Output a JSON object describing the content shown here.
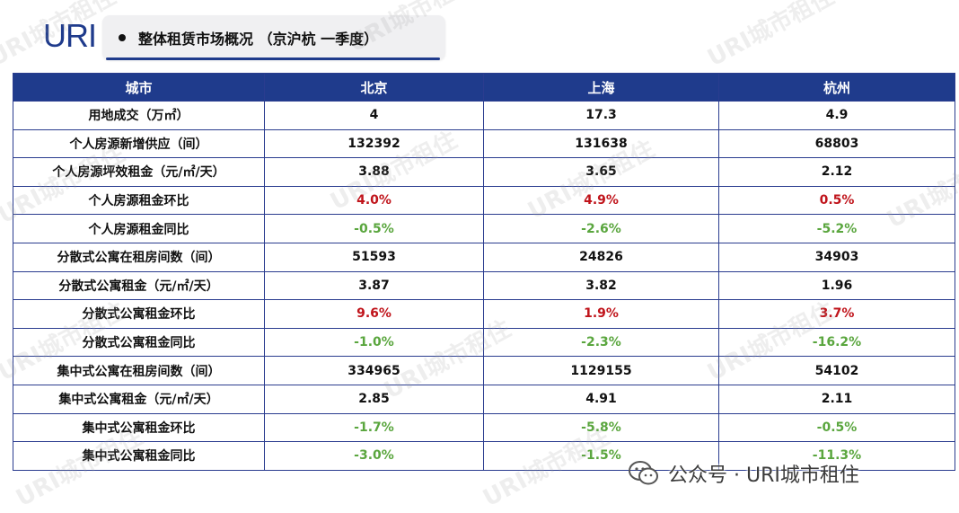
{
  "header": {
    "logo_text": "URI",
    "title": "整体租赁市场概况 （京沪杭 一季度）"
  },
  "table": {
    "columns": [
      "城市",
      "北京",
      "上海",
      "杭州"
    ],
    "rows": [
      {
        "metric": "用地成交（万㎡）",
        "values": [
          "4",
          "17.3",
          "4.9"
        ],
        "tone": [
          "",
          "",
          ""
        ]
      },
      {
        "metric": "个人房源新增供应（间）",
        "values": [
          "132392",
          "131638",
          "68803"
        ],
        "tone": [
          "",
          "",
          ""
        ]
      },
      {
        "metric": "个人房源坪效租金（元/㎡/天）",
        "values": [
          "3.88",
          "3.65",
          "2.12"
        ],
        "tone": [
          "",
          "",
          ""
        ]
      },
      {
        "metric": "个人房源租金环比",
        "values": [
          "4.0%",
          "4.9%",
          "0.5%"
        ],
        "tone": [
          "pos",
          "pos",
          "pos"
        ]
      },
      {
        "metric": "个人房源租金同比",
        "values": [
          "-0.5%",
          "-2.6%",
          "-5.2%"
        ],
        "tone": [
          "neg",
          "neg",
          "neg"
        ]
      },
      {
        "metric": "分散式公寓在租房间数（间）",
        "values": [
          "51593",
          "24826",
          "34903"
        ],
        "tone": [
          "",
          "",
          ""
        ]
      },
      {
        "metric": "分散式公寓租金（元/㎡/天）",
        "values": [
          "3.87",
          "3.82",
          "1.96"
        ],
        "tone": [
          "",
          "",
          ""
        ]
      },
      {
        "metric": "分散式公寓租金环比",
        "values": [
          "9.6%",
          "1.9%",
          "3.7%"
        ],
        "tone": [
          "pos",
          "pos",
          "pos"
        ]
      },
      {
        "metric": "分散式公寓租金同比",
        "values": [
          "-1.0%",
          "-2.3%",
          "-16.2%"
        ],
        "tone": [
          "neg",
          "neg",
          "neg"
        ]
      },
      {
        "metric": "集中式公寓在租房间数（间）",
        "values": [
          "334965",
          "1129155",
          "54102"
        ],
        "tone": [
          "",
          "",
          ""
        ]
      },
      {
        "metric": "集中式公寓租金（元/㎡/天）",
        "values": [
          "2.85",
          "4.91",
          "2.11"
        ],
        "tone": [
          "",
          "",
          ""
        ]
      },
      {
        "metric": "集中式公寓租金环比",
        "values": [
          "-1.7%",
          "-5.8%",
          "-0.5%"
        ],
        "tone": [
          "neg",
          "neg",
          "neg"
        ]
      },
      {
        "metric": "集中式公寓租金同比",
        "values": [
          "-3.0%",
          "-1.5%",
          "-11.3%"
        ],
        "tone": [
          "neg",
          "neg",
          "neg"
        ]
      }
    ]
  },
  "colors": {
    "header_blue": "#1f3b8c",
    "increase_red": "#c0141b",
    "decrease_green": "#5aa63e"
  },
  "watermark": "URI城市租住",
  "footer": {
    "wechat_icon": "wechat-icon",
    "text": "公众号 · URI城市租住"
  }
}
